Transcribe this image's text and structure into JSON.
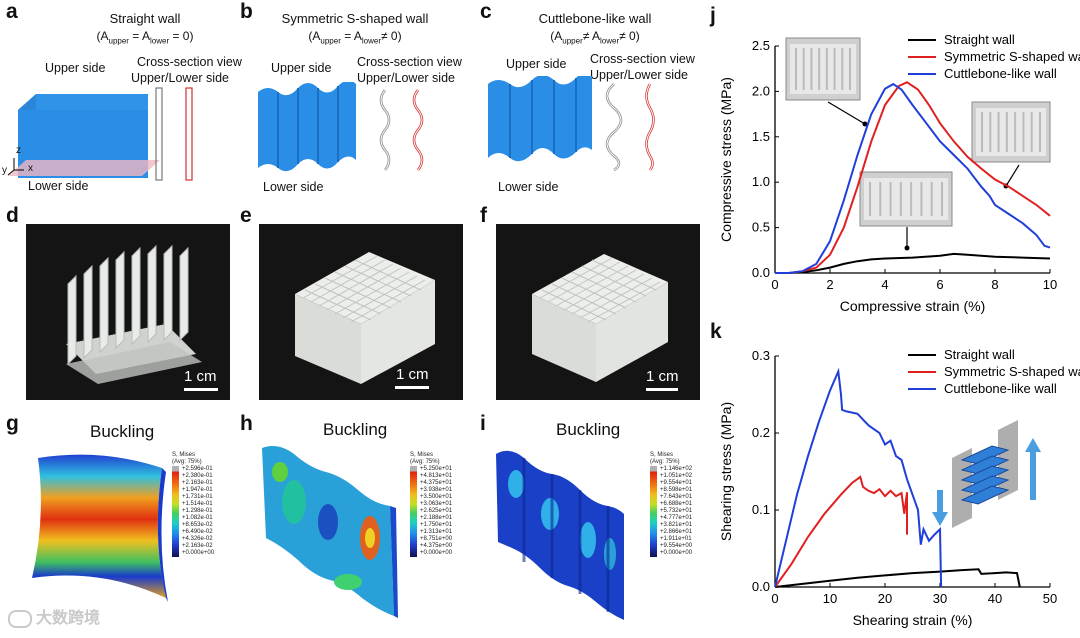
{
  "panels": {
    "a": {
      "label": "a",
      "title": "Straight wall",
      "eq": "(A",
      "eq_sub1": "upper",
      "eq_mid": " = A",
      "eq_sub2": "lower",
      "eq_end": " = 0)",
      "upper": "Upper side",
      "lower": "Lower side",
      "cs1": "Cross-section view",
      "cs2": "Upper/Lower side",
      "axis_z": "z",
      "axis_y": "y",
      "axis_x": "x"
    },
    "b": {
      "label": "b",
      "title": "Symmetric S-shaped wall",
      "eq": "(A",
      "eq_sub1": "upper",
      "eq_mid": " = A",
      "eq_sub2": "lower",
      "eq_end": "≠ 0)",
      "upper": "Upper side",
      "lower": "Lower side",
      "cs1": "Cross-section view",
      "cs2": "Upper/Lower side"
    },
    "c": {
      "label": "c",
      "title": "Cuttlebone-like wall",
      "eq": "(A",
      "eq_sub1": "upper",
      "eq_mid": "≠ A",
      "eq_sub2": "lower",
      "eq_end": "≠ 0)",
      "upper": "Upper side",
      "lower": "Lower side",
      "cs1": "Cross-section view",
      "cs2": "Upper/Lower side"
    },
    "d": {
      "label": "d",
      "scale": "1 cm"
    },
    "e": {
      "label": "e",
      "scale": "1 cm"
    },
    "f": {
      "label": "f",
      "scale": "1 cm"
    },
    "g": {
      "label": "g",
      "title": "Buckling",
      "legend_head": [
        "S, Mises",
        "(Avg: 75%)"
      ],
      "legend_vals": [
        "+2.596e-01",
        "+2.380e-01",
        "+2.163e-01",
        "+1.947e-01",
        "+1.731e-01",
        "+1.514e-01",
        "+1.298e-01",
        "+1.082e-01",
        "+8.653e-02",
        "+6.490e-02",
        "+4.326e-02",
        "+2.163e-02",
        "+0.000e+00"
      ]
    },
    "h": {
      "label": "h",
      "title": "Buckling",
      "legend_head": [
        "S, Mises",
        "(Avg: 75%)"
      ],
      "legend_vals": [
        "+5.250e+01",
        "+4.813e+01",
        "+4.375e+01",
        "+3.938e+01",
        "+3.500e+01",
        "+3.063e+01",
        "+2.625e+01",
        "+2.188e+01",
        "+1.750e+01",
        "+1.313e+01",
        "+8.751e+00",
        "+4.375e+00",
        "+0.000e+00"
      ]
    },
    "i": {
      "label": "i",
      "title": "Buckling",
      "legend_head": [
        "S, Mises",
        "(Avg: 75%)"
      ],
      "legend_vals": [
        "+1.146e+02",
        "+1.051e+02",
        "+9.554e+01",
        "+8.598e+01",
        "+7.643e+01",
        "+6.688e+01",
        "+5.732e+01",
        "+4.777e+01",
        "+3.821e+01",
        "+2.866e+01",
        "+1.911e+01",
        "+9.554e+00",
        "+0.000e+00"
      ]
    },
    "j": {
      "label": "j"
    },
    "k": {
      "label": "k"
    }
  },
  "watermark": "大数跨境",
  "colors": {
    "straight": "#000000",
    "symmetric": "#e02020",
    "cuttlebone": "#1f3fd8",
    "wall_blue": "#2a8de6"
  },
  "chart_data": [
    {
      "type": "line",
      "xlabel": "Compressive strain (%)",
      "ylabel": "Compressive stress (MPa)",
      "xlim": [
        0,
        10
      ],
      "ylim": [
        0,
        2.5
      ],
      "xticks": [
        0,
        2,
        4,
        6,
        8,
        10
      ],
      "yticks": [
        0.0,
        0.5,
        1.0,
        1.5,
        2.0,
        2.5
      ],
      "legend_position": "top-right",
      "series": [
        {
          "name": "Straight wall",
          "color": "#000000",
          "x": [
            0,
            0.5,
            1,
            1.5,
            2,
            2.5,
            3,
            3.5,
            4,
            5,
            6,
            6.5,
            7,
            8,
            9,
            10
          ],
          "y": [
            0,
            0.0,
            0.01,
            0.03,
            0.06,
            0.1,
            0.13,
            0.15,
            0.16,
            0.17,
            0.19,
            0.21,
            0.2,
            0.18,
            0.17,
            0.16
          ]
        },
        {
          "name": "Symmetric S-shaped wall",
          "color": "#e02020",
          "x": [
            0,
            0.5,
            1,
            1.5,
            2,
            2.5,
            3,
            3.5,
            4,
            4.5,
            4.8,
            5.2,
            5.6,
            6,
            6.5,
            7,
            7.5,
            8,
            8.5,
            9,
            9.5,
            10
          ],
          "y": [
            0,
            0.0,
            0.02,
            0.06,
            0.2,
            0.5,
            0.95,
            1.45,
            1.85,
            2.06,
            2.1,
            2.02,
            1.85,
            1.65,
            1.45,
            1.28,
            1.15,
            1.03,
            0.95,
            0.85,
            0.75,
            0.63
          ]
        },
        {
          "name": "Cuttlebone-like wall",
          "color": "#1f3fd8",
          "x": [
            0,
            0.5,
            1,
            1.5,
            2,
            2.5,
            3,
            3.5,
            4,
            4.3,
            4.6,
            5,
            5.5,
            6,
            6.5,
            7,
            7.5,
            7.8,
            8,
            8.5,
            9,
            9.5,
            9.8,
            10
          ],
          "y": [
            0,
            0.0,
            0.02,
            0.1,
            0.35,
            0.8,
            1.3,
            1.75,
            2.03,
            2.08,
            2.02,
            1.85,
            1.65,
            1.45,
            1.3,
            1.15,
            0.95,
            0.85,
            0.75,
            0.65,
            0.55,
            0.42,
            0.3,
            0.28
          ]
        }
      ]
    },
    {
      "type": "line",
      "xlabel": "Shearing strain (%)",
      "ylabel": "Shearing stress (MPa)",
      "xlim": [
        0,
        50
      ],
      "ylim": [
        0,
        0.3
      ],
      "xticks": [
        0,
        10,
        20,
        30,
        40,
        50
      ],
      "yticks": [
        0.0,
        0.1,
        0.2,
        0.3
      ],
      "legend_position": "top-right",
      "series": [
        {
          "name": "Straight wall",
          "color": "#000000",
          "x": [
            0,
            5,
            10,
            15,
            20,
            25,
            30,
            34,
            37,
            37.5,
            40,
            42,
            44,
            44.5
          ],
          "y": [
            0,
            0.004,
            0.008,
            0.012,
            0.015,
            0.018,
            0.02,
            0.022,
            0.023,
            0.017,
            0.018,
            0.019,
            0.018,
            0.0
          ]
        },
        {
          "name": "Symmetric S-shaped wall",
          "color": "#e02020",
          "x": [
            0,
            3,
            6,
            9,
            12,
            14,
            15.5,
            16,
            17,
            18,
            19,
            20,
            21,
            22,
            23,
            23.5,
            24,
            24
          ],
          "y": [
            0,
            0.03,
            0.065,
            0.095,
            0.12,
            0.135,
            0.143,
            0.13,
            0.125,
            0.122,
            0.127,
            0.118,
            0.125,
            0.118,
            0.122,
            0.095,
            0.123,
            0.068
          ]
        },
        {
          "name": "Cuttlebone-like wall",
          "color": "#1f3fd8",
          "x": [
            0,
            2,
            4,
            6,
            8,
            10,
            11.5,
            12,
            12.2,
            13,
            15,
            17,
            19,
            20,
            21,
            22,
            23,
            24,
            25,
            26,
            26.5,
            27,
            28,
            29,
            30,
            30.2
          ],
          "y": [
            0,
            0.06,
            0.12,
            0.17,
            0.215,
            0.255,
            0.28,
            0.25,
            0.23,
            0.228,
            0.225,
            0.21,
            0.2,
            0.185,
            0.19,
            0.17,
            0.165,
            0.14,
            0.12,
            0.1,
            0.055,
            0.075,
            0.06,
            0.068,
            0.075,
            0.0
          ]
        }
      ]
    }
  ]
}
